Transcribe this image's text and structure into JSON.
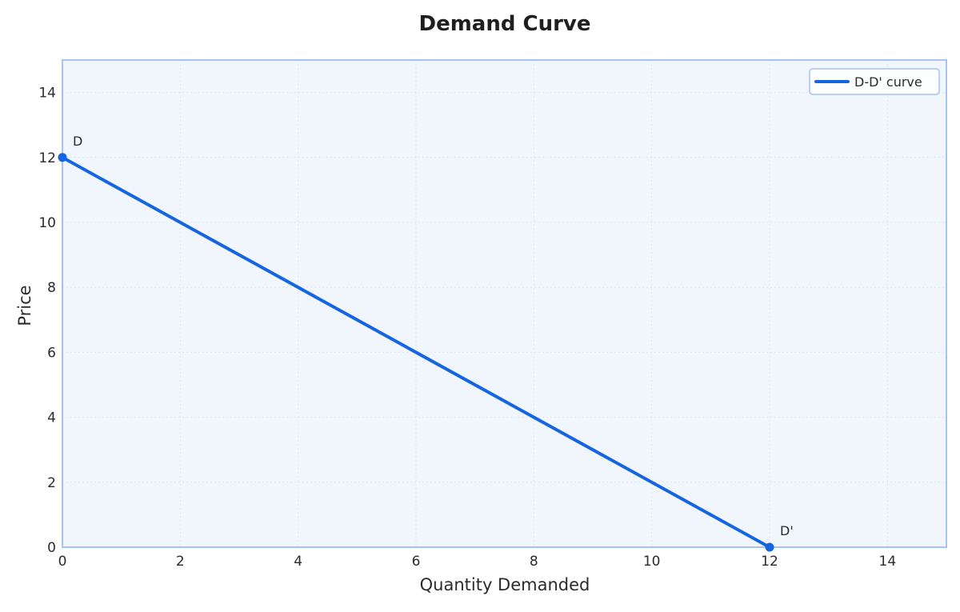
{
  "chart_data": {
    "type": "line",
    "title": "Demand Curve",
    "xlabel": "Quantity Demanded",
    "ylabel": "Price",
    "xlim": [
      0,
      15
    ],
    "ylim": [
      0,
      15
    ],
    "xticks": [
      0,
      2,
      4,
      6,
      8,
      10,
      12,
      14
    ],
    "yticks": [
      0,
      2,
      4,
      6,
      8,
      10,
      12,
      14
    ],
    "grid": true,
    "legend_position": "top-right",
    "series": [
      {
        "name": "D-D' curve",
        "color": "#1565e0",
        "x": [
          0,
          12
        ],
        "y": [
          12,
          0
        ]
      }
    ],
    "annotations": [
      {
        "text": "D",
        "x": 0,
        "y": 12
      },
      {
        "text": "D'",
        "x": 12,
        "y": 0
      }
    ],
    "colors": {
      "plot_background": "#f1f6fd",
      "frame": "#a6c4f2",
      "grid": "#dbe6f5"
    }
  }
}
